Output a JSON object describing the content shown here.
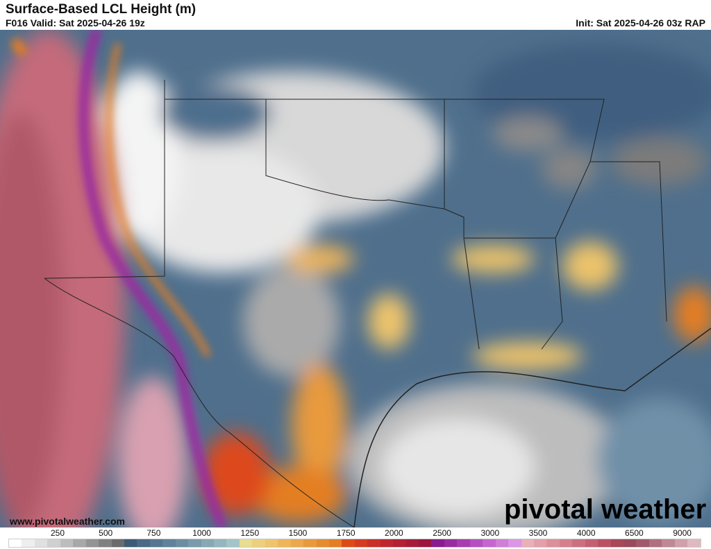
{
  "header": {
    "title": "Surface-Based LCL Height (m)",
    "valid": "F016 Valid: Sat 2025-04-26 19z",
    "init": "Init: Sat 2025-04-26 03z RAP"
  },
  "footer": {
    "url": "www.pivotalweather.com",
    "logo": "pivotal weather"
  },
  "colorbar": {
    "labels": [
      "250",
      "500",
      "750",
      "1000",
      "1250",
      "1500",
      "1750",
      "2000",
      "2500",
      "3000",
      "3500",
      "4000",
      "6500",
      "9000"
    ],
    "colors": [
      "#ffffff",
      "#eeeeee",
      "#e0e0e0",
      "#d0d0d0",
      "#bdbdbd",
      "#a8a8a8",
      "#949494",
      "#808080",
      "#6b6b6b",
      "#3d5a78",
      "#4a6a85",
      "#557690",
      "#60829a",
      "#6c8ea3",
      "#7a9bab",
      "#88a8b4",
      "#95b6be",
      "#a3c4c8",
      "#e8dd90",
      "#ecd07c",
      "#eec46c",
      "#eeb55c",
      "#eca84c",
      "#e89a3c",
      "#e68c2e",
      "#e47e22",
      "#dd4a1a",
      "#d63a20",
      "#cc2e28",
      "#c0262e",
      "#b42034",
      "#a81a3a",
      "#9c1440",
      "#8a1a90",
      "#9a2aa0",
      "#a83cb0",
      "#b650c0",
      "#c466d0",
      "#d07ed8",
      "#dc96e4",
      "#e8b0b8",
      "#e2a0aa",
      "#dc909c",
      "#d4808e",
      "#cc7080",
      "#c46072",
      "#bb5064",
      "#a84858",
      "#9a4a5a",
      "#a05a6a",
      "#b07080",
      "#c08896",
      "#d0a0ac",
      "#e0b8c0"
    ]
  }
}
